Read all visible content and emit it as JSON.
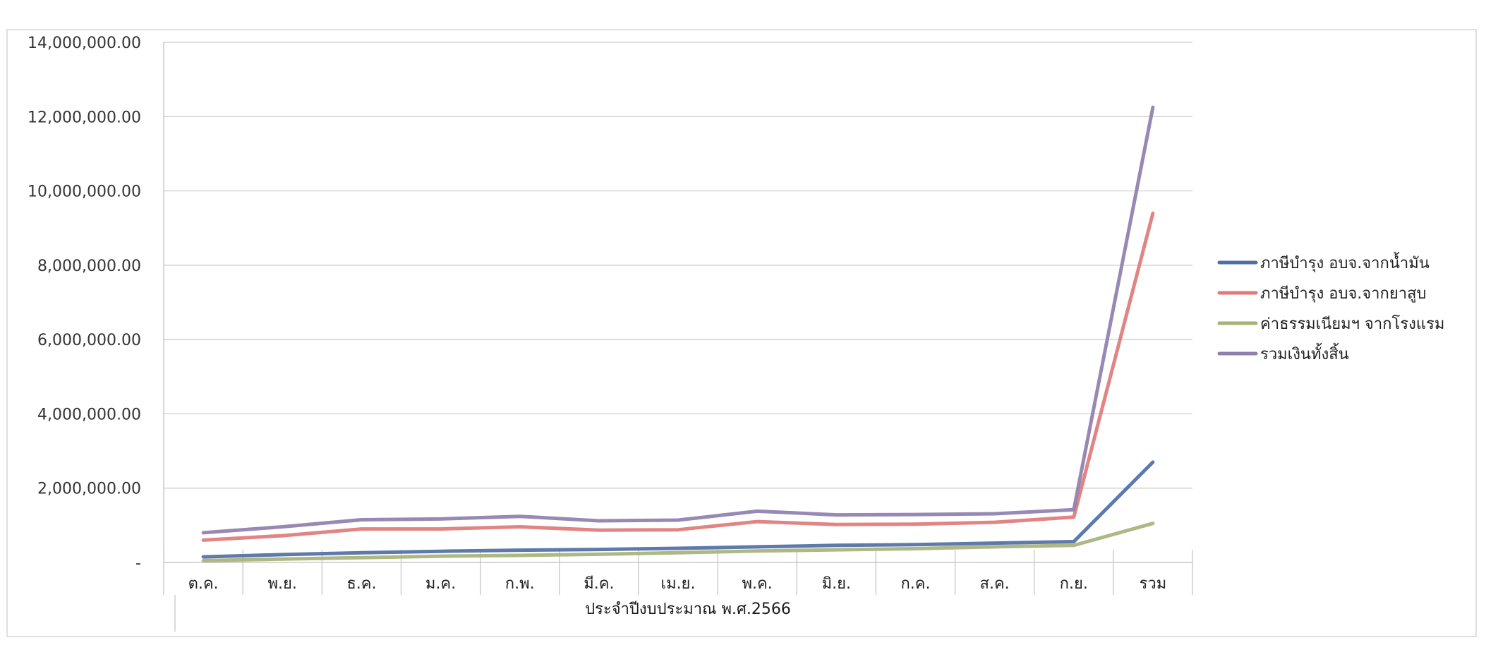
{
  "chart_data": {
    "type": "line",
    "categories": [
      "ต.ค.",
      "พ.ย.",
      "ธ.ค.",
      "ม.ค.",
      "ก.พ.",
      "มี.ค.",
      "เม.ย.",
      "พ.ค.",
      "มิ.ย.",
      "ก.ค.",
      "ส.ค.",
      "ก.ย.",
      "รวม"
    ],
    "series": [
      {
        "name": "ภาษีบำรุง อบจ.จากน้ำมัน",
        "color": "#4f6fa3",
        "values": [
          150000,
          210000,
          260000,
          300000,
          330000,
          350000,
          380000,
          420000,
          460000,
          480000,
          520000,
          560000,
          2700000
        ]
      },
      {
        "name": "ภาษีบำรุง อบจ.จากยาสูบ",
        "color": "#e07a7a",
        "values": [
          600000,
          720000,
          900000,
          900000,
          960000,
          870000,
          880000,
          1100000,
          1020000,
          1030000,
          1080000,
          1220000,
          9400000
        ]
      },
      {
        "name": "ค่าธรรมเนียมฯ จากโรงแรม",
        "color": "#a7b27a",
        "values": [
          50000,
          90000,
          130000,
          170000,
          190000,
          220000,
          260000,
          310000,
          340000,
          370000,
          420000,
          460000,
          1050000
        ]
      },
      {
        "name": "รวมเงินทั้งสิ้น",
        "color": "#8f7fae",
        "values": [
          800000,
          960000,
          1150000,
          1170000,
          1240000,
          1120000,
          1140000,
          1380000,
          1280000,
          1290000,
          1310000,
          1420000,
          12250000
        ]
      }
    ],
    "ylim": [
      0,
      14000000
    ],
    "yticks": [
      0,
      2000000,
      4000000,
      6000000,
      8000000,
      10000000,
      12000000,
      14000000
    ],
    "ytick_labels": [
      "-",
      "2,000,000.00",
      "4,000,000.00",
      "6,000,000.00",
      "8,000,000.00",
      "10,000,000.00",
      "12,000,000.00",
      "14,000,000.00"
    ],
    "xlabel": "ประจำปีงบประมาณ พ.ศ.2566",
    "ylabel": "",
    "grid": true,
    "legend_position": "right"
  }
}
